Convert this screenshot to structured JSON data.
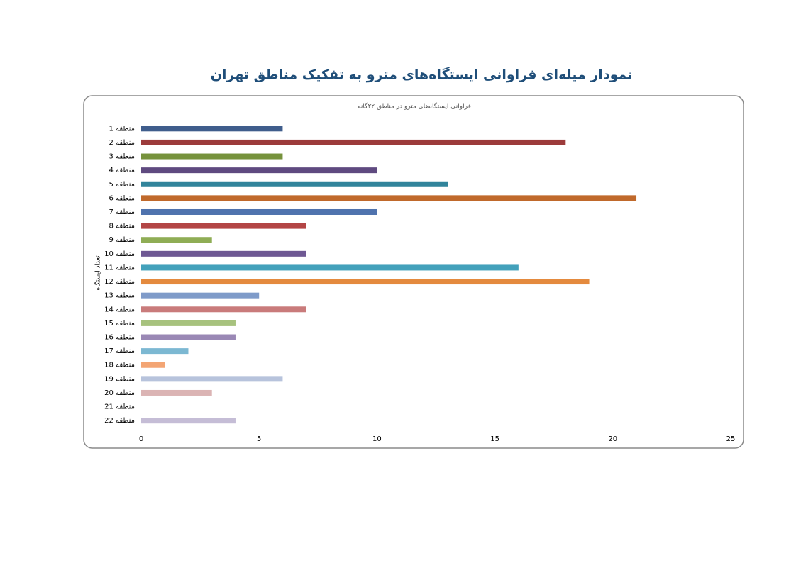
{
  "chart_data": {
    "type": "bar",
    "orientation": "horizontal",
    "title": "نمودار میله‌ای فراوانی ایستگاه‌های مترو به تفکیک مناطق تهران",
    "subtitle": "فراوانی ایستگاه‌های مترو در مناطق ۲۲گانه",
    "y_label": "تعداد ایستگاه",
    "categories": [
      "منطقه 1",
      "منطقه 2",
      "منطقه 3",
      "منطقه 4",
      "منطقه 5",
      "منطقه 6",
      "منطقه 7",
      "منطقه 8",
      "منطقه 9",
      "منطقه 10",
      "منطقه 11",
      "منطقه 12",
      "منطقه 13",
      "منطقه 14",
      "منطقه 15",
      "منطقه 16",
      "منطقه 17",
      "منطقه 18",
      "منطقه 19",
      "منطقه 20",
      "منطقه 21",
      "منطقه 22"
    ],
    "values": [
      6,
      18,
      6,
      10,
      13,
      21,
      10,
      7,
      3,
      7,
      16,
      19,
      5,
      7,
      4,
      4,
      2,
      1,
      6,
      3,
      0,
      4
    ],
    "colors": [
      "#3f5d8c",
      "#9c3b3b",
      "#76923c",
      "#5f4a80",
      "#31849b",
      "#c0692b",
      "#4f73ae",
      "#b34545",
      "#8fad55",
      "#6e5893",
      "#43a1bb",
      "#e48a3e",
      "#7f9bc9",
      "#c97b7b",
      "#a7c27e",
      "#9a88b5",
      "#7cb8d2",
      "#f3a574",
      "#b7c3dc",
      "#dbb4b4",
      "#c8d9ac",
      "#c5bdd6"
    ],
    "xlim": [
      0,
      25
    ],
    "xticks": [
      0,
      5,
      10,
      15,
      20,
      25
    ],
    "grid": false
  }
}
